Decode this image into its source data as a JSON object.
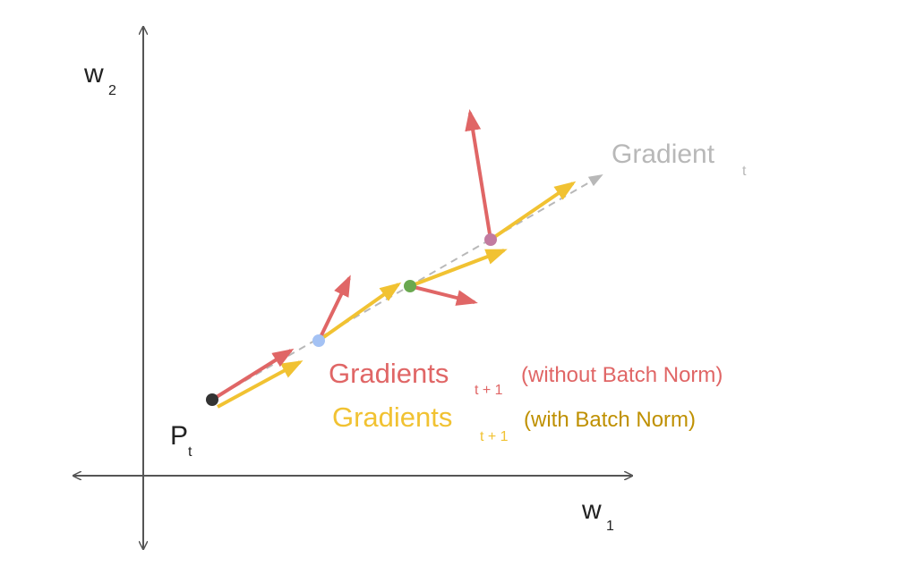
{
  "axes": {
    "y_label": {
      "text": "w",
      "subscript": "2"
    },
    "x_label": {
      "text": "w",
      "subscript": "1"
    }
  },
  "point_label": {
    "text": "P",
    "subscript": "t"
  },
  "gradient_label": {
    "text": "Gradient",
    "subscript": "t"
  },
  "legend": [
    {
      "text": "Gradients",
      "subscript": "t + 1",
      "note": "(without Batch Norm)"
    },
    {
      "text": "Gradients",
      "subscript": "t + 1",
      "note": "(with Batch Norm)"
    }
  ]
}
